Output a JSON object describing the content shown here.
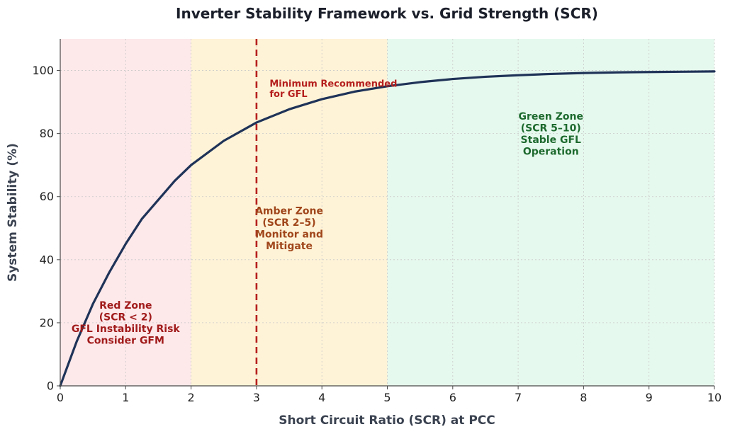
{
  "chart_data": {
    "type": "line",
    "title": "Inverter Stability Framework vs. Grid Strength (SCR)",
    "xlabel": "Short Circuit Ratio (SCR) at PCC",
    "ylabel": "System Stability (%)",
    "xlim": [
      0,
      10
    ],
    "ylim": [
      0,
      110
    ],
    "x_ticks": [
      "0",
      "1",
      "2",
      "3",
      "4",
      "5",
      "6",
      "7",
      "8",
      "9",
      "10"
    ],
    "y_ticks": [
      "0",
      "20",
      "40",
      "60",
      "80",
      "100"
    ],
    "grid": true,
    "series": [
      {
        "x": [
          0,
          0.25,
          0.5,
          0.75,
          1,
          1.25,
          1.5,
          1.75,
          2,
          2.5,
          3,
          3.5,
          4,
          4.5,
          5,
          5.5,
          6,
          6.5,
          7,
          7.5,
          8,
          8.5,
          9,
          9.5,
          10
        ],
        "values": [
          0,
          14,
          26,
          36,
          45,
          53,
          59,
          65,
          70,
          77.7,
          83.5,
          87.7,
          90.9,
          93.3,
          95,
          96.3,
          97.3,
          98,
          98.5,
          98.9,
          99.2,
          99.4,
          99.5,
          99.6,
          99.7
        ],
        "color": "#1f3358"
      }
    ],
    "zones": [
      {
        "x_range": [
          0,
          2
        ],
        "color": "#fde8ea",
        "text_color": "#a11b1b",
        "lines": [
          "Red Zone",
          "(SCR < 2)",
          "GFL Instability Risk",
          "Consider GFM"
        ],
        "label_x": 1,
        "label_y": 20
      },
      {
        "x_range": [
          2,
          5
        ],
        "color": "#fff3d7",
        "text_color": "#a0461b",
        "lines": [
          "Amber Zone",
          "(SCR 2–5)",
          "Monitor and",
          "Mitigate"
        ],
        "label_x": 3.5,
        "label_y": 50
      },
      {
        "x_range": [
          5,
          10
        ],
        "color": "#e6f9ee",
        "text_color": "#1d6a2e",
        "lines": [
          "Green Zone",
          "(SCR 5–10)",
          "Stable GFL",
          "Operation"
        ],
        "label_x": 7.5,
        "label_y": 80
      }
    ],
    "reference_line": {
      "x": 3,
      "color": "#b5201e",
      "style": "dashed",
      "lines": [
        "Minimum Recommended",
        "for GFL"
      ],
      "label_x": 3.2,
      "label_y": 95.5
    }
  }
}
